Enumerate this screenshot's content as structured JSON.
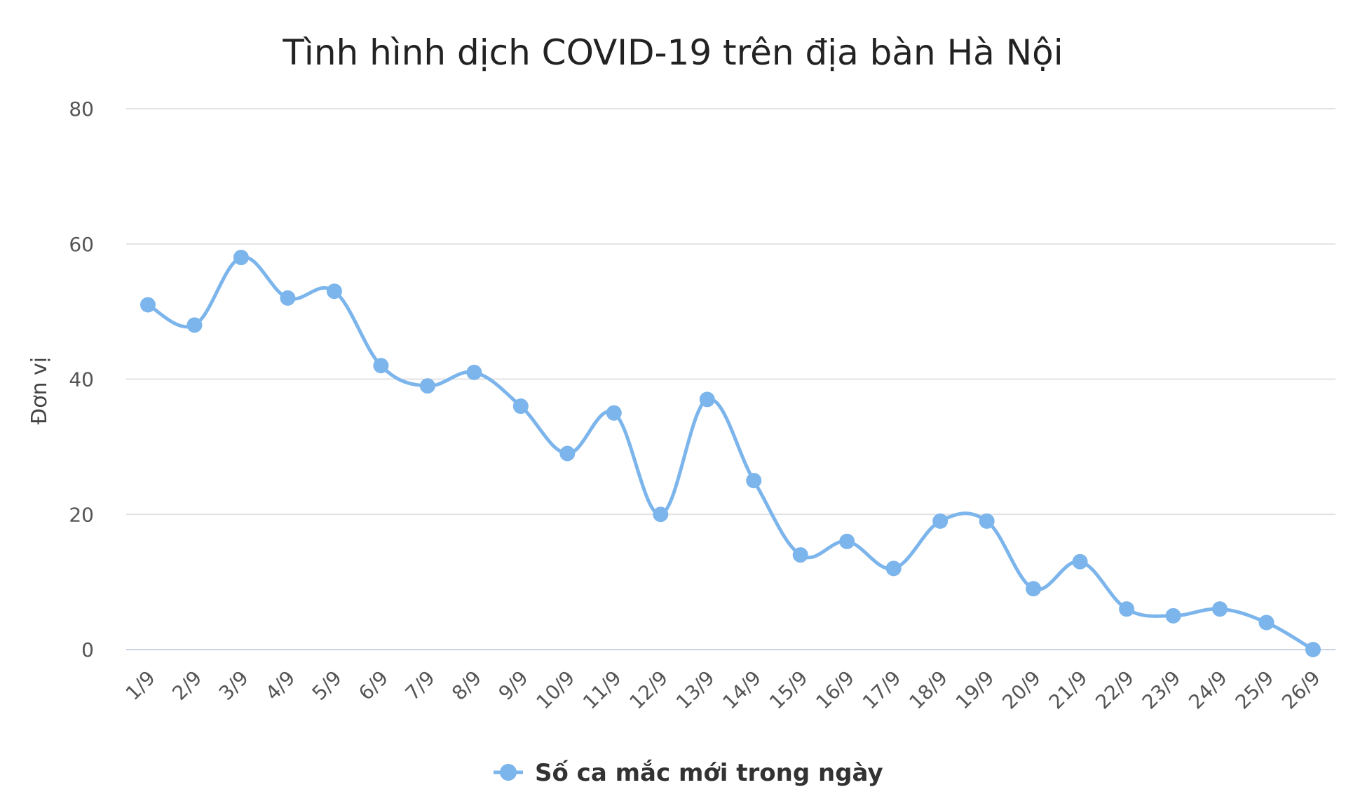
{
  "chart_data": {
    "type": "line",
    "title": "Tình hình dịch COVID-19 trên địa bàn Hà Nội",
    "ylabel": "Đơn vị",
    "xlabel": "",
    "categories": [
      "1/9",
      "2/9",
      "3/9",
      "4/9",
      "5/9",
      "6/9",
      "7/9",
      "8/9",
      "9/9",
      "10/9",
      "11/9",
      "12/9",
      "13/9",
      "14/9",
      "15/9",
      "16/9",
      "17/9",
      "18/9",
      "19/9",
      "20/9",
      "21/9",
      "22/9",
      "23/9",
      "24/9",
      "25/9",
      "26/9"
    ],
    "series": [
      {
        "name": "Số ca mắc mới trong ngày",
        "color": "#7cb5ec",
        "values": [
          51,
          48,
          58,
          52,
          53,
          42,
          39,
          41,
          36,
          29,
          35,
          20,
          37,
          25,
          14,
          16,
          12,
          19,
          19,
          9,
          13,
          6,
          5,
          6,
          4,
          0
        ]
      }
    ],
    "ylim": [
      0,
      80
    ],
    "yticks": [
      "0",
      "20",
      "40",
      "60",
      "80"
    ],
    "grid": true,
    "legend_position": "bottom-center"
  }
}
